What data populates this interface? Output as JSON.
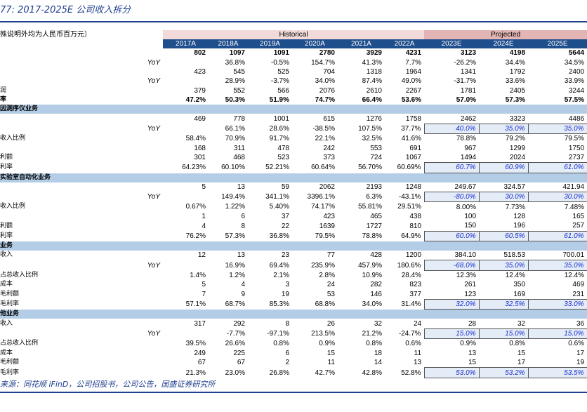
{
  "title": "77:  2017-2025E 公司收入拆分",
  "unit_note": "殊说明外均为人民币百万元）",
  "group_headers": {
    "historical": "Historical",
    "projected": "Projected"
  },
  "years": [
    "2017A",
    "2018A",
    "2019A",
    "2020A",
    "2021A",
    "2022A",
    "2023E",
    "2024E",
    "2025E"
  ],
  "rows": [
    {
      "label": "",
      "yoy": "",
      "bold": true,
      "values": [
        "802",
        "1097",
        "1091",
        "2780",
        "3929",
        "4231",
        "3123",
        "4198",
        "5644"
      ]
    },
    {
      "label": "",
      "yoy": "YoY",
      "values": [
        "",
        "36.8%",
        "-0.5%",
        "154.7%",
        "41.3%",
        "7.7%",
        "-26.2%",
        "34.4%",
        "34.5%"
      ]
    },
    {
      "label": "",
      "yoy": "",
      "values": [
        "423",
        "545",
        "525",
        "704",
        "1318",
        "1964",
        "1341",
        "1792",
        "2400"
      ]
    },
    {
      "label": "",
      "yoy": "YoY",
      "values": [
        "",
        "28.9%",
        "-3.7%",
        "34.0%",
        "87.4%",
        "49.0%",
        "-31.7%",
        "33.6%",
        "33.9%"
      ]
    },
    {
      "label": "润",
      "yoy": "",
      "values": [
        "379",
        "552",
        "566",
        "2076",
        "2610",
        "2267",
        "1781",
        "2405",
        "3244"
      ]
    },
    {
      "label": "率",
      "yoy": "",
      "bold": true,
      "values": [
        "47.2%",
        "50.3%",
        "51.9%",
        "74.7%",
        "66.4%",
        "53.6%",
        "57.0%",
        "57.3%",
        "57.5%"
      ]
    },
    {
      "section": true,
      "label": "因测序仪业务"
    },
    {
      "label": "",
      "yoy": "",
      "values": [
        "469",
        "778",
        "1001",
        "615",
        "1276",
        "1758",
        "2462",
        "3323",
        "4486"
      ]
    },
    {
      "label": "",
      "yoy": "YoY",
      "ph": true,
      "values": [
        "",
        "66.1%",
        "28.6%",
        "-38.5%",
        "107.5%",
        "37.7%",
        "40.0%",
        "35.0%",
        "35.0%"
      ]
    },
    {
      "label": "收入比例",
      "yoy": "",
      "values": [
        "58.4%",
        "70.9%",
        "91.7%",
        "22.1%",
        "32.5%",
        "41.6%",
        "78.8%",
        "79.2%",
        "79.5%"
      ]
    },
    {
      "label": "",
      "yoy": "",
      "values": [
        "168",
        "311",
        "478",
        "242",
        "553",
        "691",
        "967",
        "1299",
        "1750"
      ]
    },
    {
      "label": "利额",
      "yoy": "",
      "values": [
        "301",
        "468",
        "523",
        "373",
        "724",
        "1067",
        "1494",
        "2024",
        "2737"
      ]
    },
    {
      "label": "利率",
      "yoy": "",
      "ph": true,
      "values": [
        "64.23%",
        "60.10%",
        "52.21%",
        "60.64%",
        "56.70%",
        "60.69%",
        "60.7%",
        "60.9%",
        "61.0%"
      ]
    },
    {
      "section": true,
      "label": "实验室自动化业务"
    },
    {
      "label": "",
      "yoy": "",
      "values": [
        "5",
        "13",
        "59",
        "2062",
        "2193",
        "1248",
        "249.67",
        "324.57",
        "421.94"
      ]
    },
    {
      "label": "",
      "yoy": "YoY",
      "ph": true,
      "values": [
        "",
        "149.4%",
        "341.1%",
        "3396.1%",
        "6.3%",
        "-43.1%",
        "-80.0%",
        "30.0%",
        "30.0%"
      ]
    },
    {
      "label": "收入比例",
      "yoy": "",
      "values": [
        "0.67%",
        "1.22%",
        "5.40%",
        "74.17%",
        "55.81%",
        "29.51%",
        "8.00%",
        "7.73%",
        "7.48%"
      ]
    },
    {
      "label": "",
      "yoy": "",
      "values": [
        "1",
        "6",
        "37",
        "423",
        "465",
        "438",
        "100",
        "128",
        "165"
      ]
    },
    {
      "label": "利额",
      "yoy": "",
      "values": [
        "4",
        "8",
        "22",
        "1639",
        "1727",
        "810",
        "150",
        "196",
        "257"
      ]
    },
    {
      "label": "利率",
      "yoy": "",
      "ph": true,
      "values": [
        "76.2%",
        "57.3%",
        "36.8%",
        "79.5%",
        "78.8%",
        "64.9%",
        "60.0%",
        "60.5%",
        "61.0%"
      ]
    },
    {
      "section": true,
      "label": "业务"
    },
    {
      "label": "收入",
      "yoy": "",
      "values": [
        "12",
        "13",
        "23",
        "77",
        "428",
        "1200",
        "384.10",
        "518.53",
        "700.01"
      ]
    },
    {
      "label": "",
      "yoy": "YoY",
      "ph": true,
      "values": [
        "",
        "16.9%",
        "69.4%",
        "235.9%",
        "457.9%",
        "180.6%",
        "-68.0%",
        "35.0%",
        "35.0%"
      ]
    },
    {
      "label": "占总收入比例",
      "yoy": "",
      "values": [
        "1.4%",
        "1.2%",
        "2.1%",
        "2.8%",
        "10.9%",
        "28.4%",
        "12.3%",
        "12.4%",
        "12.4%"
      ]
    },
    {
      "label": "成本",
      "yoy": "",
      "values": [
        "5",
        "4",
        "3",
        "24",
        "282",
        "823",
        "261",
        "350",
        "469"
      ]
    },
    {
      "label": "毛利额",
      "yoy": "",
      "values": [
        "7",
        "9",
        "19",
        "53",
        "146",
        "377",
        "123",
        "169",
        "231"
      ]
    },
    {
      "label": "毛利率",
      "yoy": "",
      "ph": true,
      "values": [
        "57.1%",
        "68.7%",
        "85.3%",
        "68.8%",
        "34.0%",
        "31.4%",
        "32.0%",
        "32.5%",
        "33.0%"
      ]
    },
    {
      "section": true,
      "label": "他业务"
    },
    {
      "label": "收入",
      "yoy": "",
      "values": [
        "317",
        "292",
        "8",
        "26",
        "32",
        "24",
        "28",
        "32",
        "36"
      ]
    },
    {
      "label": "",
      "yoy": "YoY",
      "ph": true,
      "values": [
        "",
        "-7.7%",
        "-97.1%",
        "213.5%",
        "21.2%",
        "-24.7%",
        "15.0%",
        "15.0%",
        "15.0%"
      ]
    },
    {
      "label": "占总收入比例",
      "yoy": "",
      "values": [
        "39.5%",
        "26.6%",
        "0.8%",
        "0.9%",
        "0.8%",
        "0.6%",
        "0.9%",
        "0.8%",
        "0.6%"
      ]
    },
    {
      "label": "成本",
      "yoy": "",
      "values": [
        "249",
        "225",
        "6",
        "15",
        "18",
        "11",
        "13",
        "15",
        "17"
      ]
    },
    {
      "label": "毛利额",
      "yoy": "",
      "values": [
        "67",
        "67",
        "2",
        "11",
        "14",
        "13",
        "15",
        "17",
        "19"
      ]
    },
    {
      "label": "毛利率",
      "yoy": "",
      "ph": true,
      "values": [
        "21.3%",
        "23.0%",
        "26.8%",
        "42.7%",
        "42.8%",
        "52.8%",
        "53.0%",
        "53.2%",
        "53.5%"
      ]
    }
  ],
  "source": "来源：同花顺 iFinD，公司招股书，公司公告，国盛证券研究所"
}
